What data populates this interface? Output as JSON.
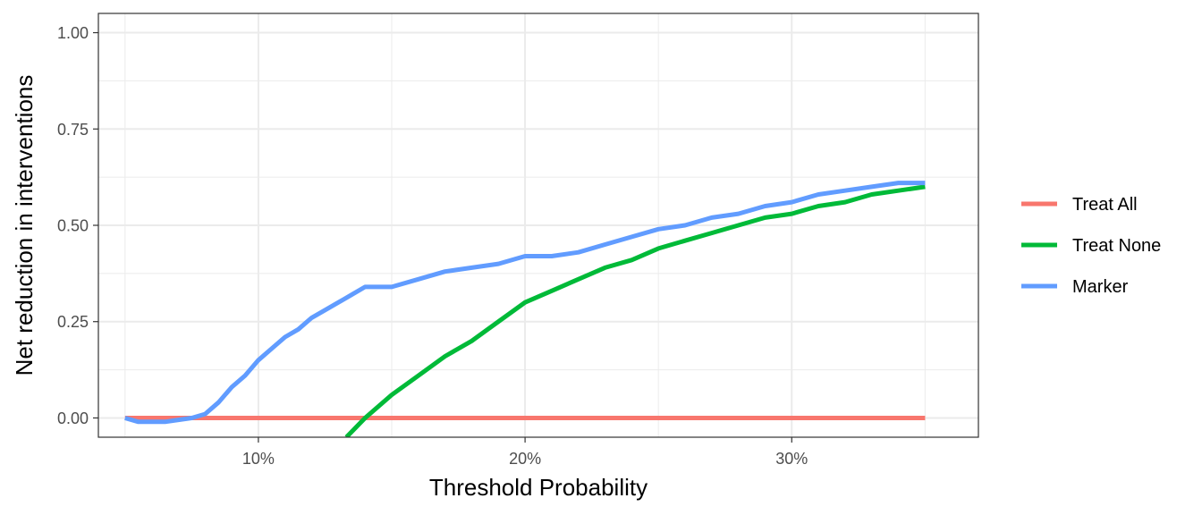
{
  "chart_data": {
    "type": "line",
    "xlabel": "Threshold Probability",
    "ylabel": "Net reduction in interventions",
    "xlim": [
      0.04,
      0.37
    ],
    "ylim": [
      -0.05,
      1.05
    ],
    "x_ticks": [
      {
        "value": 0.1,
        "label": "10%"
      },
      {
        "value": 0.2,
        "label": "20%"
      },
      {
        "value": 0.3,
        "label": "30%"
      }
    ],
    "y_ticks": [
      {
        "value": 0.0,
        "label": "0.00"
      },
      {
        "value": 0.25,
        "label": "0.25"
      },
      {
        "value": 0.5,
        "label": "0.50"
      },
      {
        "value": 0.75,
        "label": "0.75"
      },
      {
        "value": 1.0,
        "label": "1.00"
      }
    ],
    "grid": true,
    "legend_position": "right",
    "series": [
      {
        "name": "Treat All",
        "color": "#F8766D",
        "x": [
          0.05,
          0.35
        ],
        "y": [
          0.0,
          0.0
        ]
      },
      {
        "name": "Treat None",
        "color": "#00BA38",
        "x": [
          0.133,
          0.14,
          0.15,
          0.16,
          0.17,
          0.18,
          0.19,
          0.2,
          0.21,
          0.22,
          0.23,
          0.24,
          0.25,
          0.26,
          0.27,
          0.28,
          0.29,
          0.3,
          0.31,
          0.32,
          0.33,
          0.34,
          0.35
        ],
        "y": [
          -0.05,
          0.0,
          0.06,
          0.11,
          0.16,
          0.2,
          0.25,
          0.3,
          0.33,
          0.36,
          0.39,
          0.41,
          0.44,
          0.46,
          0.48,
          0.5,
          0.52,
          0.53,
          0.55,
          0.56,
          0.58,
          0.59,
          0.6
        ]
      },
      {
        "name": "Marker",
        "color": "#619CFF",
        "x": [
          0.05,
          0.055,
          0.06,
          0.065,
          0.07,
          0.075,
          0.08,
          0.085,
          0.09,
          0.095,
          0.1,
          0.105,
          0.11,
          0.115,
          0.12,
          0.125,
          0.13,
          0.135,
          0.14,
          0.145,
          0.15,
          0.16,
          0.17,
          0.18,
          0.19,
          0.2,
          0.21,
          0.22,
          0.23,
          0.24,
          0.25,
          0.26,
          0.27,
          0.28,
          0.29,
          0.3,
          0.31,
          0.32,
          0.33,
          0.34,
          0.35
        ],
        "y": [
          0.0,
          -0.01,
          -0.01,
          -0.01,
          -0.005,
          0.0,
          0.01,
          0.04,
          0.08,
          0.11,
          0.15,
          0.18,
          0.21,
          0.23,
          0.26,
          0.28,
          0.3,
          0.32,
          0.34,
          0.34,
          0.34,
          0.36,
          0.38,
          0.39,
          0.4,
          0.42,
          0.42,
          0.43,
          0.45,
          0.47,
          0.49,
          0.5,
          0.52,
          0.53,
          0.55,
          0.56,
          0.58,
          0.59,
          0.6,
          0.61,
          0.61
        ]
      }
    ]
  }
}
